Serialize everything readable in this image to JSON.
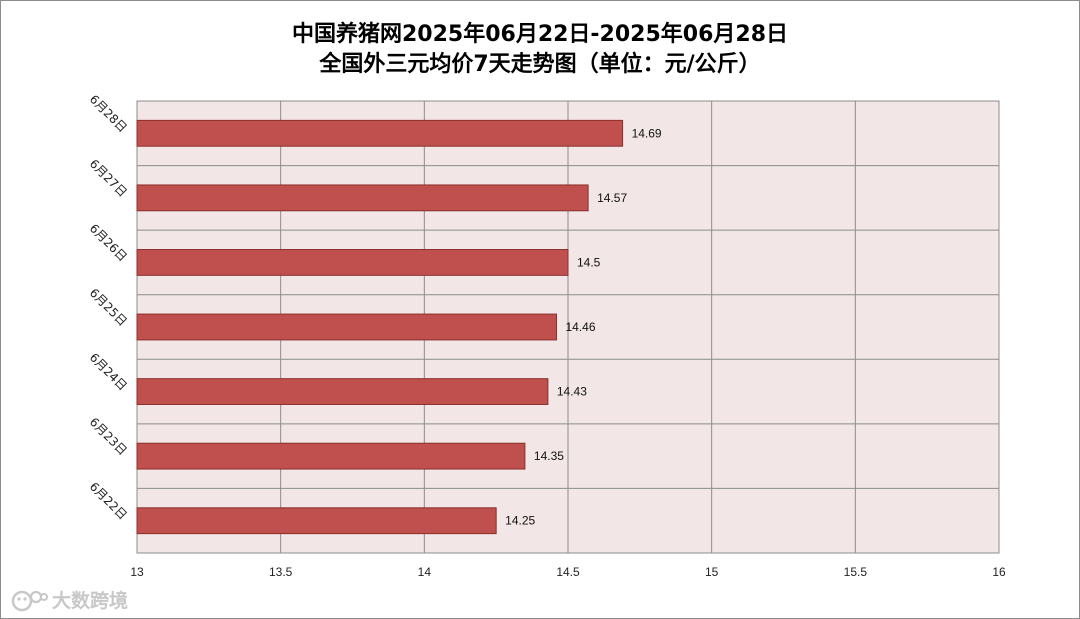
{
  "chart_data": {
    "type": "bar",
    "orientation": "horizontal",
    "title": [
      "中国养猪网2025年06月22日-2025年06月28日",
      "全国外三元均价7天走势图（单位：元/公斤）"
    ],
    "categories": [
      "6月28日",
      "6月27日",
      "6月26日",
      "6月25日",
      "6月24日",
      "6月23日",
      "6月22日"
    ],
    "values": [
      14.69,
      14.57,
      14.5,
      14.46,
      14.43,
      14.35,
      14.25
    ],
    "data_labels": [
      "14.69",
      "14.57",
      "14.5",
      "14.46",
      "14.43",
      "14.35",
      "14.25"
    ],
    "xlim": [
      13,
      16
    ],
    "xticks": [
      13,
      13.5,
      14,
      14.5,
      15,
      15.5,
      16
    ],
    "xtick_labels": [
      "13",
      "13.5",
      "14",
      "14.5",
      "15",
      "15.5",
      "16"
    ],
    "xlabel": "",
    "ylabel": "",
    "grid": true,
    "legend": "none",
    "colors": {
      "bar_fill": "#c0504d",
      "bar_stroke": "#8b2f2d",
      "plot_background": "#f2e6e6",
      "grid": "#8c8c8c"
    }
  },
  "watermark": {
    "text": "大数跨境",
    "icon": "cartoon-face-icon"
  }
}
